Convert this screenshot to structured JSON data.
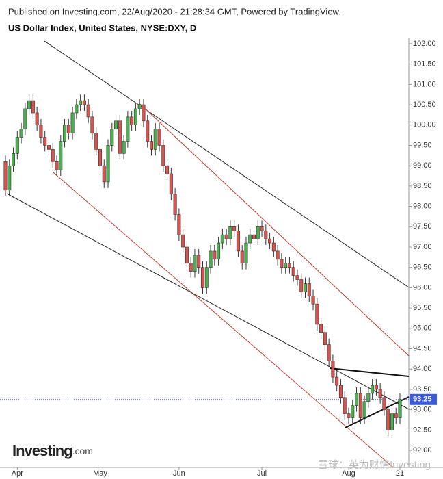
{
  "chart_data": {
    "type": "candlestick",
    "published": "Published on Investing.com, 22/Aug/2020 - 21:28:34 GMT, Powered by TradingView.",
    "title": "US Dollar Index, United States, NYSE:DXY, D",
    "logo": {
      "name": "Investing",
      "suffix": ".com"
    },
    "watermark": "雪球：英为财情Investing",
    "categories": [
      null,
      null,
      null,
      "Apr",
      null,
      null,
      null,
      null,
      null,
      null,
      null,
      null,
      null,
      null,
      null,
      null,
      null,
      null,
      null,
      null,
      null,
      null,
      null,
      null,
      "May",
      null,
      null,
      null,
      null,
      null,
      null,
      null,
      null,
      null,
      null,
      null,
      null,
      null,
      null,
      null,
      null,
      null,
      null,
      null,
      "Jun",
      null,
      null,
      null,
      null,
      null,
      null,
      null,
      null,
      null,
      null,
      null,
      null,
      null,
      null,
      null,
      null,
      null,
      null,
      null,
      null,
      "Jul",
      null,
      null,
      null,
      null,
      null,
      null,
      null,
      null,
      null,
      null,
      null,
      null,
      null,
      null,
      null,
      null,
      null,
      null,
      null,
      null,
      null,
      "Aug",
      null,
      null,
      null,
      null,
      null,
      null,
      null,
      null,
      null,
      null,
      null,
      null,
      "21"
    ],
    "open": [
      99.1,
      98.4,
      99.0,
      99.3,
      99.7,
      99.9,
      100.4,
      100.6,
      100.3,
      100.0,
      99.7,
      99.5,
      99.4,
      99.1,
      98.9,
      99.6,
      100.0,
      99.8,
      100.3,
      100.5,
      100.6,
      100.5,
      100.2,
      99.8,
      99.4,
      99.0,
      98.6,
      99.5,
      99.9,
      100.1,
      99.3,
      99.6,
      100.2,
      100.0,
      100.4,
      100.5,
      100.1,
      99.6,
      99.4,
      99.9,
      99.5,
      99.0,
      98.8,
      98.3,
      97.8,
      97.3,
      97.0,
      96.6,
      96.4,
      96.8,
      96.5,
      96.0,
      96.5,
      96.9,
      96.7,
      97.1,
      97.3,
      97.2,
      97.5,
      97.4,
      96.9,
      96.6,
      97.1,
      97.3,
      97.2,
      97.5,
      97.4,
      97.2,
      97.1,
      96.9,
      96.7,
      96.5,
      96.6,
      96.5,
      96.3,
      96.2,
      95.9,
      96.1,
      95.8,
      95.6,
      95.1,
      94.9,
      94.6,
      94.2,
      93.8,
      93.6,
      93.3,
      92.9,
      92.8,
      93.1,
      93.4,
      92.8,
      93.2,
      93.4,
      93.6,
      93.5,
      93.3,
      93.0,
      92.5,
      92.9,
      92.8
    ],
    "high": [
      99.25,
      99.15,
      99.45,
      99.85,
      100.05,
      100.55,
      100.75,
      100.75,
      100.45,
      100.15,
      99.85,
      99.65,
      99.55,
      99.25,
      99.75,
      100.15,
      100.15,
      100.45,
      100.65,
      100.75,
      100.75,
      100.65,
      100.35,
      99.95,
      99.55,
      99.15,
      99.65,
      100.05,
      100.25,
      100.25,
      99.75,
      100.35,
      100.35,
      100.55,
      100.65,
      100.65,
      100.25,
      99.75,
      100.05,
      100.05,
      99.65,
      99.15,
      98.95,
      98.45,
      97.95,
      97.45,
      97.15,
      96.75,
      96.95,
      96.95,
      96.65,
      96.65,
      97.05,
      97.05,
      97.25,
      97.45,
      97.45,
      97.65,
      97.65,
      97.55,
      97.05,
      97.25,
      97.45,
      97.45,
      97.65,
      97.65,
      97.55,
      97.35,
      97.25,
      97.05,
      96.85,
      96.75,
      96.75,
      96.65,
      96.45,
      96.35,
      96.25,
      96.25,
      95.95,
      95.75,
      95.25,
      95.05,
      94.75,
      94.35,
      93.95,
      93.75,
      93.45,
      93.05,
      93.25,
      93.55,
      93.55,
      93.35,
      93.55,
      93.75,
      93.75,
      93.65,
      93.45,
      93.15,
      93.05,
      93.05,
      93.4
    ],
    "low": [
      98.25,
      98.25,
      98.85,
      99.15,
      99.55,
      99.75,
      100.25,
      100.15,
      99.85,
      99.55,
      99.35,
      99.25,
      98.95,
      98.75,
      98.75,
      99.45,
      99.65,
      99.65,
      100.15,
      100.35,
      100.35,
      100.05,
      99.65,
      99.25,
      98.85,
      98.45,
      98.45,
      99.35,
      99.75,
      99.15,
      99.15,
      99.45,
      99.85,
      99.85,
      100.25,
      99.95,
      99.45,
      99.25,
      99.25,
      99.35,
      98.85,
      98.65,
      98.15,
      97.65,
      97.15,
      96.85,
      96.45,
      96.25,
      96.25,
      96.35,
      95.85,
      95.85,
      96.35,
      96.55,
      96.55,
      96.95,
      97.05,
      97.05,
      97.25,
      96.75,
      96.45,
      96.45,
      96.95,
      97.05,
      97.05,
      97.25,
      97.05,
      96.95,
      96.75,
      96.55,
      96.35,
      96.35,
      96.35,
      96.15,
      96.05,
      95.75,
      95.75,
      95.65,
      95.45,
      94.95,
      94.75,
      94.45,
      94.05,
      93.65,
      93.45,
      93.15,
      92.75,
      92.65,
      92.65,
      92.95,
      92.65,
      92.65,
      93.05,
      93.25,
      93.35,
      93.15,
      92.85,
      92.35,
      92.35,
      92.65,
      92.65
    ],
    "close": [
      98.4,
      99.0,
      99.3,
      99.7,
      99.9,
      100.4,
      100.6,
      100.3,
      100.0,
      99.7,
      99.5,
      99.4,
      99.1,
      98.9,
      99.6,
      100.0,
      99.8,
      100.3,
      100.5,
      100.6,
      100.5,
      100.2,
      99.8,
      99.4,
      99.0,
      98.6,
      99.5,
      99.9,
      100.1,
      99.3,
      99.6,
      100.2,
      100.0,
      100.4,
      100.5,
      100.1,
      99.6,
      99.4,
      99.9,
      99.5,
      99.0,
      98.8,
      98.3,
      97.8,
      97.3,
      97.0,
      96.6,
      96.4,
      96.8,
      96.5,
      96.0,
      96.5,
      96.9,
      96.7,
      97.1,
      97.3,
      97.2,
      97.5,
      97.4,
      96.9,
      96.6,
      97.1,
      97.3,
      97.2,
      97.5,
      97.4,
      97.2,
      97.1,
      96.9,
      96.7,
      96.5,
      96.6,
      96.5,
      96.3,
      96.2,
      95.9,
      96.1,
      95.8,
      95.6,
      95.1,
      94.9,
      94.6,
      94.2,
      93.8,
      93.6,
      93.3,
      92.9,
      92.8,
      93.1,
      93.4,
      92.8,
      93.2,
      93.4,
      93.6,
      93.5,
      93.3,
      93.0,
      92.5,
      92.9,
      92.8,
      93.25
    ],
    "up_color": "#4caf50",
    "down_color": "#d9534f",
    "last_price": 93.25,
    "last_price_color": "#3b5bdb",
    "ylim": [
      91.9,
      102.1
    ],
    "yticks": [
      {
        "value": 92,
        "label": "92.00"
      },
      {
        "value": 92.5,
        "label": "92.50"
      },
      {
        "value": 93,
        "label": "93.00"
      },
      {
        "value": 93.5,
        "label": "93.50"
      },
      {
        "value": 94,
        "label": "94.00"
      },
      {
        "value": 94.5,
        "label": "94.50"
      },
      {
        "value": 95,
        "label": "95.00"
      },
      {
        "value": 95.5,
        "label": "95.50"
      },
      {
        "value": 96,
        "label": "96.00"
      },
      {
        "value": 96.5,
        "label": "96.50"
      },
      {
        "value": 97,
        "label": "97.00"
      },
      {
        "value": 97.5,
        "label": "97.50"
      },
      {
        "value": 98,
        "label": "98.00"
      },
      {
        "value": 98.5,
        "label": "98.50"
      },
      {
        "value": 99,
        "label": "99.00"
      },
      {
        "value": 99.5,
        "label": "99.50"
      },
      {
        "value": 100,
        "label": "100.00"
      },
      {
        "value": 100.5,
        "label": "100.50"
      },
      {
        "value": 101,
        "label": "101.00"
      },
      {
        "value": 101.5,
        "label": "101.50"
      },
      {
        "value": 102,
        "label": "102.00"
      }
    ]
  }
}
